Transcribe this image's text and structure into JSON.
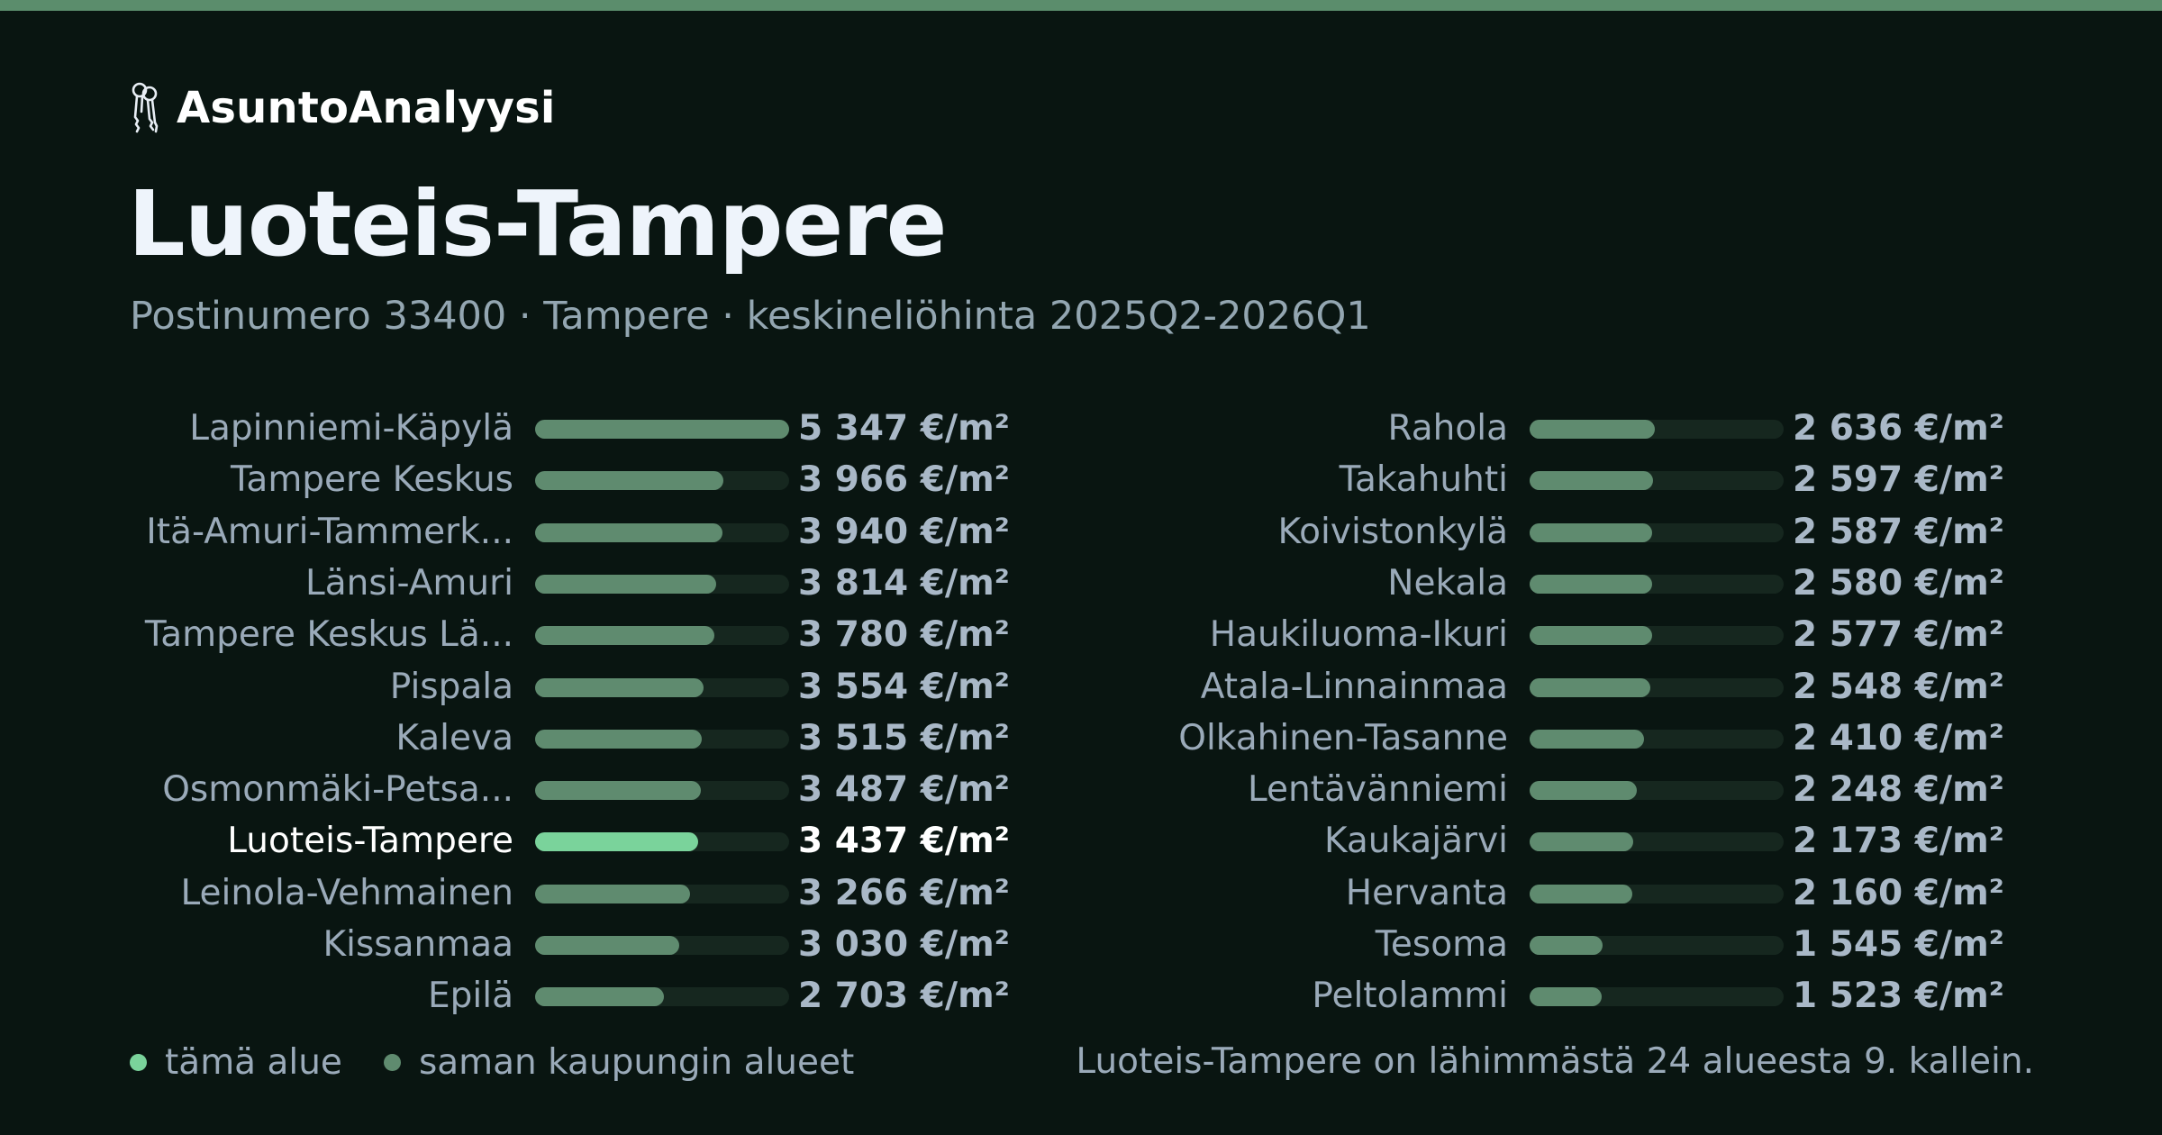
{
  "brand": {
    "name": "AsuntoAnalyysi",
    "logo_icon": "keys-icon"
  },
  "title": "Luoteis-Tampere",
  "subtitle": "Postinumero 33400 · Tampere · keskineliöhinta 2025Q2-2026Q1",
  "colors": {
    "background": "#091511",
    "accent_bar": "#5b8d6c",
    "bar_default": "#5f8b6f",
    "bar_highlight": "#7ad39b",
    "track": "#16271f"
  },
  "chart_data": {
    "type": "bar",
    "orientation": "horizontal",
    "unit": "€/m²",
    "highlight": "Luoteis-Tampere",
    "categories": [
      "Lapinniemi-Käpylä",
      "Tampere Keskus",
      "Itä-Amuri-Tammerk...",
      "Länsi-Amuri",
      "Tampere Keskus Lä...",
      "Pispala",
      "Kaleva",
      "Osmonmäki-Petsa...",
      "Luoteis-Tampere",
      "Leinola-Vehmainen",
      "Kissanmaa",
      "Epilä",
      "Rahola",
      "Takahuhti",
      "Koivistonkylä",
      "Nekala",
      "Haukiluoma-Ikuri",
      "Atala-Linnainmaa",
      "Olkahinen-Tasanne",
      "Lentävänniemi",
      "Kaukajärvi",
      "Hervanta",
      "Tesoma",
      "Peltolammi"
    ],
    "values": [
      5347,
      3966,
      3940,
      3814,
      3780,
      3554,
      3515,
      3487,
      3437,
      3266,
      3030,
      2703,
      2636,
      2597,
      2587,
      2580,
      2577,
      2548,
      2410,
      2248,
      2173,
      2160,
      1545,
      1523
    ],
    "value_labels": [
      "5 347 €/m²",
      "3 966 €/m²",
      "3 940 €/m²",
      "3 814 €/m²",
      "3 780 €/m²",
      "3 554 €/m²",
      "3 515 €/m²",
      "3 487 €/m²",
      "3 437 €/m²",
      "3 266 €/m²",
      "3 030 €/m²",
      "2 703 €/m²",
      "2 636 €/m²",
      "2 597 €/m²",
      "2 587 €/m²",
      "2 580 €/m²",
      "2 577 €/m²",
      "2 548 €/m²",
      "2 410 €/m²",
      "2 248 €/m²",
      "2 173 €/m²",
      "2 160 €/m²",
      "1 545 €/m²",
      "1 523 €/m²"
    ],
    "xlim": [
      0,
      5347
    ]
  },
  "legend": {
    "this_area": "tämä alue",
    "same_city": "saman kaupungin alueet"
  },
  "footnote": "Luoteis-Tampere on lähimmästä 24 alueesta 9. kallein."
}
